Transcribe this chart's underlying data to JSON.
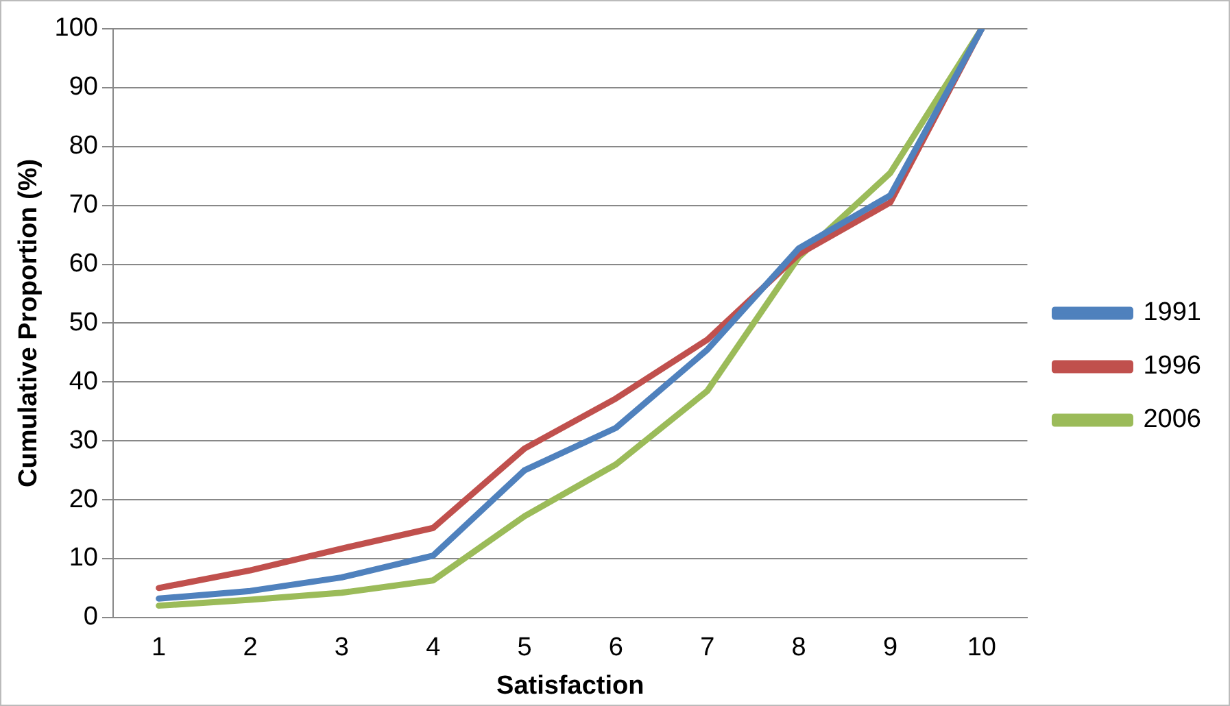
{
  "chart_data": {
    "type": "line",
    "xlabel": "Satisfaction",
    "ylabel": "Cumulative Proportion (%)",
    "categories": [
      "1",
      "2",
      "3",
      "4",
      "5",
      "6",
      "7",
      "8",
      "9",
      "10"
    ],
    "series": [
      {
        "name": "1991",
        "color": "#4f81bd",
        "values": [
          3.2,
          4.5,
          6.8,
          10.5,
          25,
          32.2,
          45.5,
          62.7,
          71.7,
          100
        ]
      },
      {
        "name": "1996",
        "color": "#c0504d",
        "values": [
          5,
          8,
          11.7,
          15.2,
          28.7,
          37.2,
          47.2,
          61.7,
          70.5,
          100
        ]
      },
      {
        "name": "2006",
        "color": "#9bbb59",
        "values": [
          2,
          3,
          4.2,
          6.3,
          17.2,
          26,
          38.5,
          61.2,
          75.5,
          100
        ]
      }
    ],
    "ylim": [
      0,
      100
    ],
    "yticks": [
      0,
      10,
      20,
      30,
      40,
      50,
      60,
      70,
      80,
      90,
      100
    ],
    "grid": "y",
    "legend": "right",
    "marker": "none",
    "line_style": "solid"
  }
}
